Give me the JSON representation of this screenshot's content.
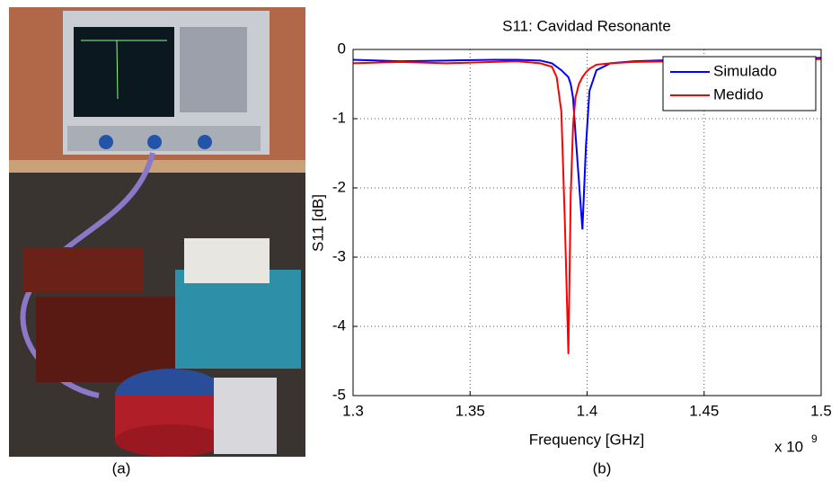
{
  "captions": [
    "(a)",
    "(b)"
  ],
  "chart_data": {
    "type": "line",
    "title": "S11: Cavidad Resonante",
    "x_label": "Frequency [GHz]",
    "y_label": "S11 [dB]",
    "x_scale_label": "x 10",
    "x_scale_exponent": "9",
    "x": [
      1.3,
      1.32,
      1.34,
      1.36,
      1.37,
      1.38,
      1.385,
      1.387,
      1.389,
      1.3905,
      1.392,
      1.393,
      1.394,
      1.395,
      1.3965,
      1.398,
      1.3995,
      1.401,
      1.404,
      1.41,
      1.42,
      1.44,
      1.46,
      1.48,
      1.5
    ],
    "series": [
      {
        "name": "Simulado",
        "color": "#0000ff",
        "values": [
          -0.15,
          -0.17,
          -0.16,
          -0.15,
          -0.15,
          -0.16,
          -0.2,
          -0.25,
          -0.3,
          -0.35,
          -0.4,
          -0.5,
          -0.7,
          -1.2,
          -1.9,
          -2.6,
          -1.4,
          -0.6,
          -0.3,
          -0.2,
          -0.17,
          -0.15,
          -0.14,
          -0.15,
          -0.12
        ]
      },
      {
        "name": "Medido",
        "color": "#ff0000",
        "values": [
          -0.2,
          -0.18,
          -0.2,
          -0.18,
          -0.17,
          -0.2,
          -0.25,
          -0.4,
          -0.9,
          -2.5,
          -4.4,
          -2.1,
          -1.1,
          -0.7,
          -0.5,
          -0.4,
          -0.33,
          -0.28,
          -0.22,
          -0.2,
          -0.18,
          -0.17,
          -0.15,
          -0.15,
          -0.14
        ]
      }
    ],
    "xlim": [
      1.3,
      1.5
    ],
    "xticks": [
      1.3,
      1.35,
      1.4,
      1.45,
      1.5
    ],
    "ylim": [
      -5,
      0
    ],
    "yticks": [
      0,
      -1,
      -2,
      -3,
      -4,
      -5
    ],
    "grid": true,
    "legend": "top-right"
  }
}
